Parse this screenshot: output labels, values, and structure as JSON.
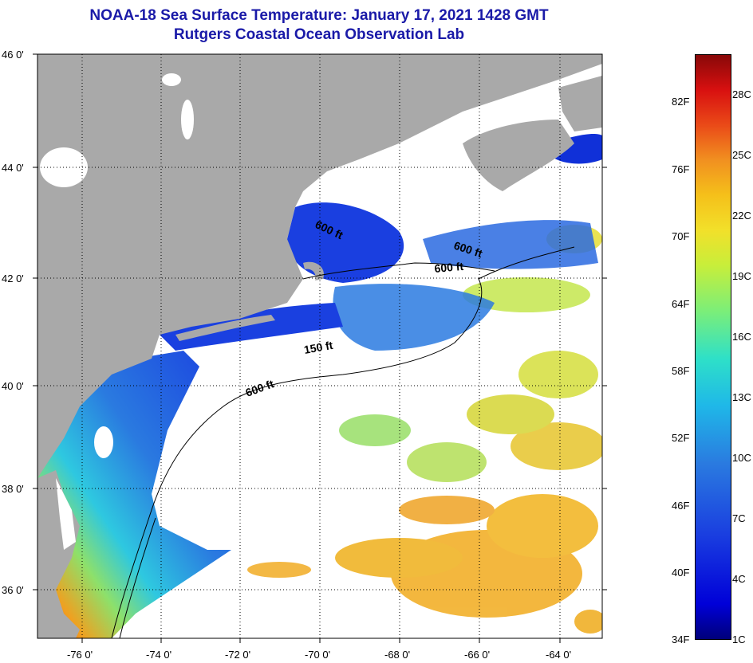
{
  "title": "NOAA-18 Sea Surface Temperature:  January 17, 2021 1428 GMT",
  "subtitle": "Rutgers Coastal Ocean Observation Lab",
  "lat_labels": [
    "46 0'",
    "44 0'",
    "42 0'",
    "40 0'",
    "38 0'",
    "36 0'"
  ],
  "lon_labels": [
    "-76 0'",
    "-74 0'",
    "-72 0'",
    "-70 0'",
    "-68 0'",
    "-66 0'",
    "-64 0'"
  ],
  "contour_labels": [
    "600 ft",
    "600 ft",
    "600 ft",
    "150 ft",
    "600 ft"
  ],
  "colorbar": {
    "fahrenheit": [
      "82F",
      "76F",
      "70F",
      "64F",
      "58F",
      "52F",
      "46F",
      "40F",
      "34F"
    ],
    "celsius": [
      "28C",
      "25C",
      "22C",
      "19C",
      "16C",
      "13C",
      "10C",
      "7C",
      "4C",
      "1C"
    ]
  },
  "colors": {
    "land": "#a9a9a9",
    "title": "#1a1aa8",
    "cold": "#1a3fe0",
    "warm": "#e83a10"
  }
}
